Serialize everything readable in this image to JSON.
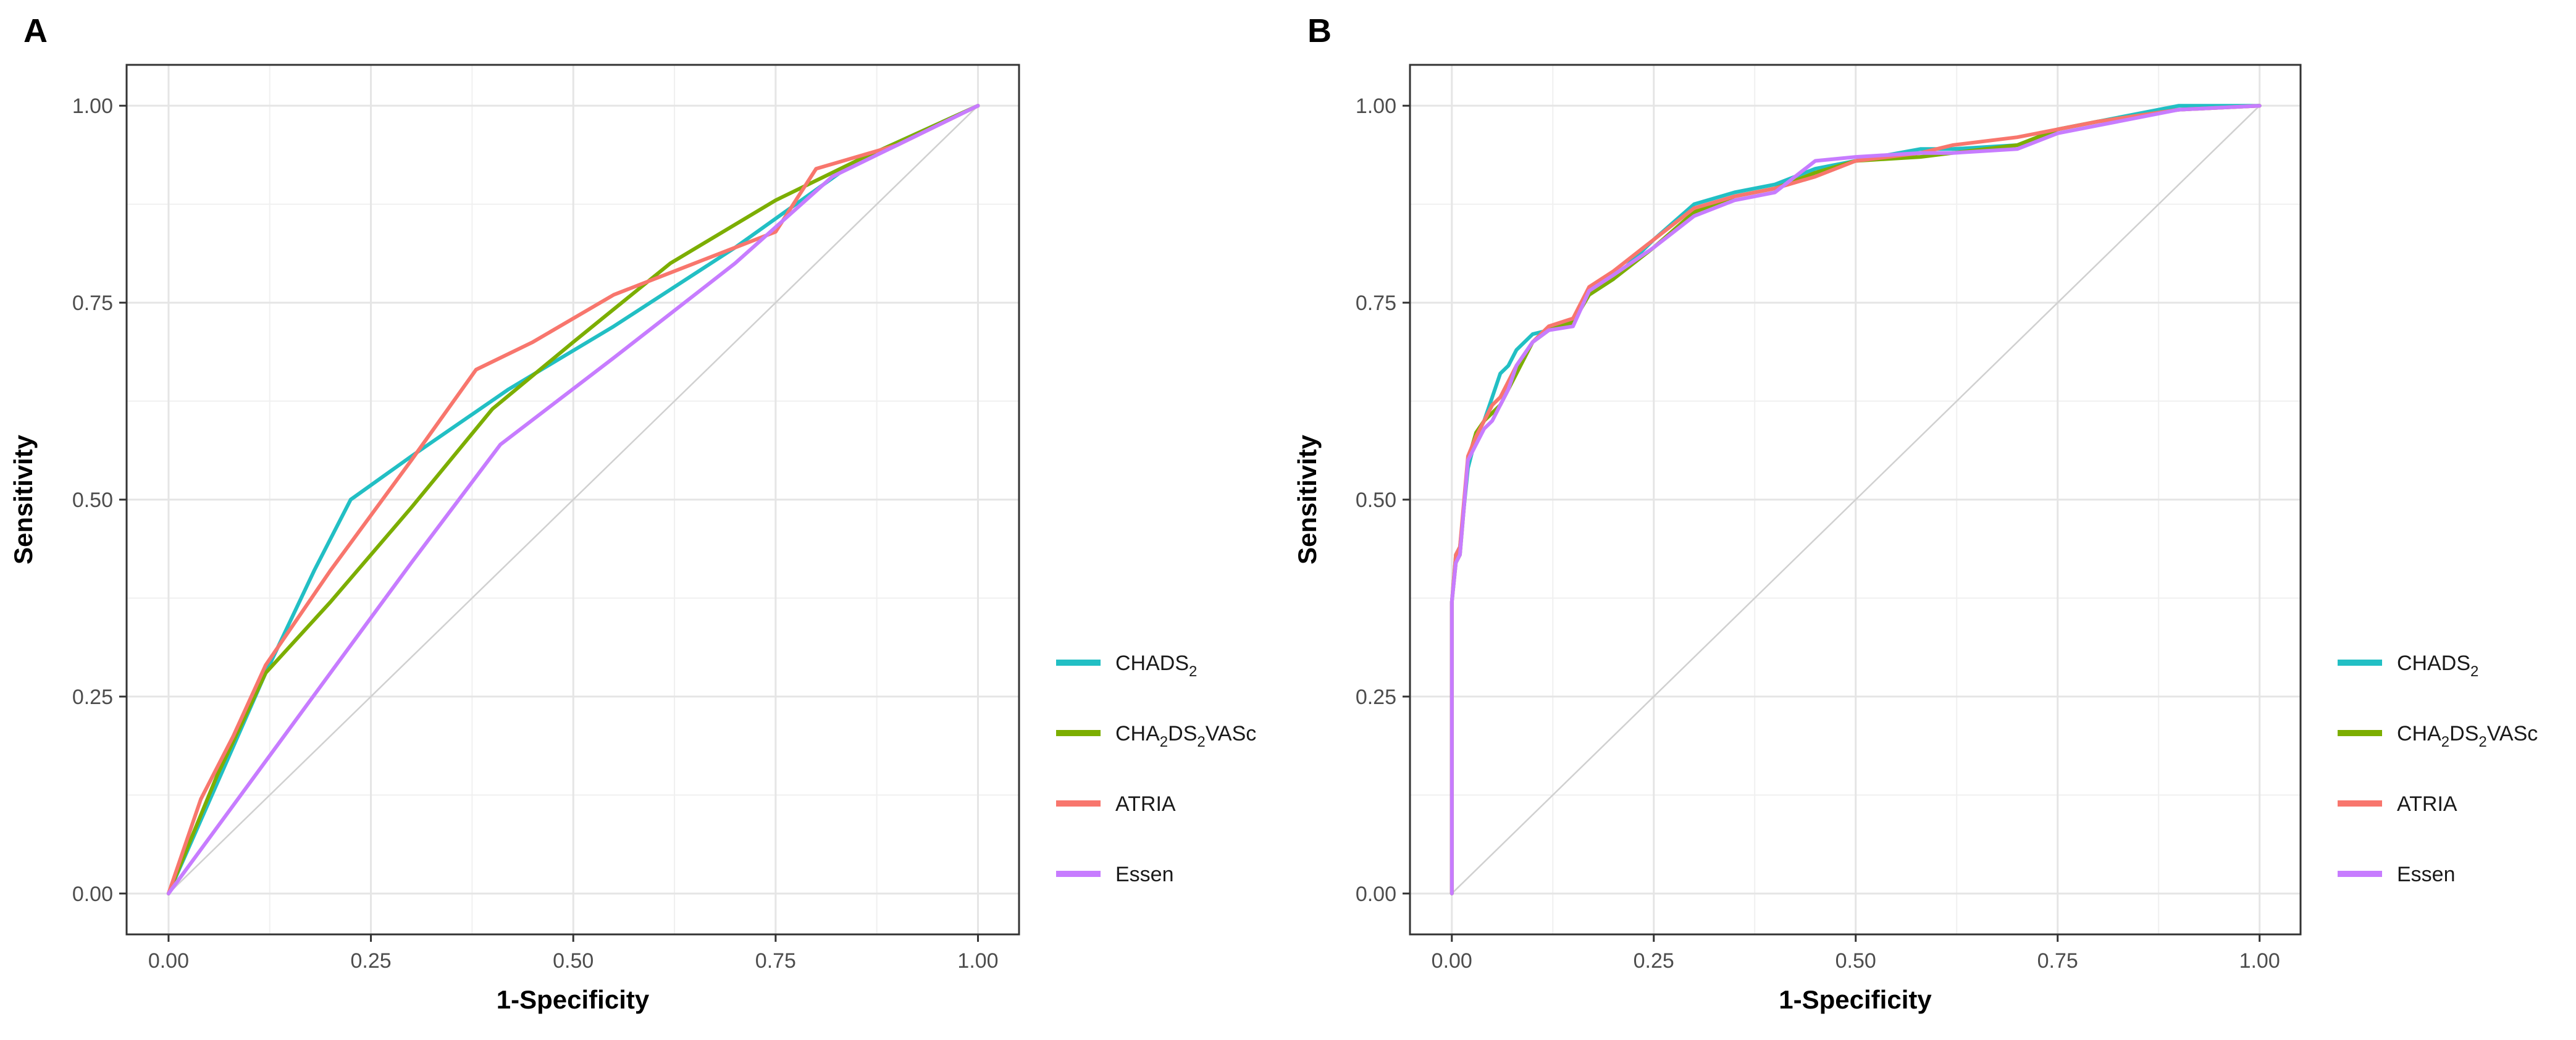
{
  "colors": {
    "CHADS2": "#22BFC4",
    "CHA2DS2VASc": "#7CAE00",
    "ATRIA": "#F8766D",
    "Essen": "#C77CFF",
    "reference": "#d0d0d0",
    "grid": "#e5e5e5",
    "frame": "#333333"
  },
  "legend": {
    "items": [
      {
        "key": "CHADS2",
        "label_parts": [
          {
            "t": "CHADS"
          },
          {
            "t": "2",
            "sub": true
          }
        ]
      },
      {
        "key": "CHA2DS2VASc",
        "label_parts": [
          {
            "t": "CHA"
          },
          {
            "t": "2",
            "sub": true
          },
          {
            "t": "DS"
          },
          {
            "t": "2",
            "sub": true
          },
          {
            "t": "VASc"
          }
        ]
      },
      {
        "key": "ATRIA",
        "label_parts": [
          {
            "t": "ATRIA"
          }
        ]
      },
      {
        "key": "Essen",
        "label_parts": [
          {
            "t": "Essen"
          }
        ]
      }
    ]
  },
  "chart_data": [
    {
      "type": "line",
      "panel": "A",
      "xlabel": "1-Specificity",
      "ylabel": "Sensitivity",
      "xlim": [
        0,
        1
      ],
      "ylim": [
        0,
        1
      ],
      "x_ticks": [
        "0.00",
        "0.25",
        "0.50",
        "0.75",
        "1.00"
      ],
      "y_ticks": [
        "0.00",
        "0.25",
        "0.50",
        "0.75",
        "1.00"
      ],
      "grid": true,
      "legend_position": "right",
      "reference_line": [
        [
          0,
          0
        ],
        [
          1,
          1
        ]
      ],
      "series": [
        {
          "key": "CHADS2",
          "name": "CHADS2",
          "x": [
            0,
            0.06,
            0.12,
            0.18,
            0.225,
            0.3,
            0.42,
            0.55,
            0.7,
            0.85,
            1.0
          ],
          "y": [
            0,
            0.14,
            0.28,
            0.41,
            0.5,
            0.555,
            0.64,
            0.72,
            0.82,
            0.93,
            1.0
          ]
        },
        {
          "key": "CHA2DS2VASc",
          "name": "CHA2DS2VASc",
          "x": [
            0,
            0.06,
            0.12,
            0.2,
            0.3,
            0.4,
            0.5,
            0.62,
            0.75,
            0.85,
            1.0
          ],
          "y": [
            0,
            0.15,
            0.28,
            0.37,
            0.49,
            0.615,
            0.7,
            0.8,
            0.88,
            0.93,
            1.0
          ]
        },
        {
          "key": "ATRIA",
          "name": "ATRIA",
          "x": [
            0,
            0.04,
            0.08,
            0.12,
            0.2,
            0.3,
            0.38,
            0.45,
            0.55,
            0.65,
            0.75,
            0.8,
            0.9,
            1.0
          ],
          "y": [
            0,
            0.12,
            0.2,
            0.29,
            0.41,
            0.55,
            0.665,
            0.7,
            0.76,
            0.8,
            0.84,
            0.92,
            0.95,
            1.0
          ]
        },
        {
          "key": "Essen",
          "name": "Essen",
          "x": [
            0,
            0.1,
            0.2,
            0.3,
            0.41,
            0.55,
            0.7,
            0.82,
            0.9,
            1.0
          ],
          "y": [
            0,
            0.14,
            0.28,
            0.42,
            0.57,
            0.68,
            0.8,
            0.91,
            0.95,
            1.0
          ]
        }
      ]
    },
    {
      "type": "line",
      "panel": "B",
      "xlabel": "1-Specificity",
      "ylabel": "Sensitivity",
      "xlim": [
        0,
        1
      ],
      "ylim": [
        0,
        1
      ],
      "x_ticks": [
        "0.00",
        "0.25",
        "0.50",
        "0.75",
        "1.00"
      ],
      "y_ticks": [
        "0.00",
        "0.25",
        "0.50",
        "0.75",
        "1.00"
      ],
      "grid": true,
      "legend_position": "right",
      "reference_line": [
        [
          0,
          0
        ],
        [
          1,
          1
        ]
      ],
      "series": [
        {
          "key": "CHADS2",
          "name": "CHADS2",
          "x": [
            0,
            0,
            0.005,
            0.01,
            0.02,
            0.03,
            0.04,
            0.05,
            0.06,
            0.07,
            0.08,
            0.1,
            0.12,
            0.15,
            0.17,
            0.2,
            0.25,
            0.3,
            0.35,
            0.4,
            0.45,
            0.5,
            0.58,
            0.62,
            0.7,
            0.75,
            0.8,
            0.9,
            1.0
          ],
          "y": [
            0,
            0.37,
            0.43,
            0.44,
            0.54,
            0.58,
            0.6,
            0.63,
            0.66,
            0.67,
            0.69,
            0.71,
            0.715,
            0.73,
            0.76,
            0.78,
            0.83,
            0.875,
            0.89,
            0.9,
            0.92,
            0.93,
            0.945,
            0.945,
            0.95,
            0.97,
            0.98,
            1.0,
            1.0
          ]
        },
        {
          "key": "CHA2DS2VASc",
          "name": "CHA2DS2VASc",
          "x": [
            0,
            0,
            0.005,
            0.01,
            0.02,
            0.03,
            0.04,
            0.05,
            0.06,
            0.07,
            0.08,
            0.1,
            0.12,
            0.15,
            0.17,
            0.2,
            0.25,
            0.3,
            0.35,
            0.4,
            0.45,
            0.5,
            0.58,
            0.62,
            0.7,
            0.75,
            0.8,
            0.9,
            1.0
          ],
          "y": [
            0,
            0.37,
            0.42,
            0.43,
            0.55,
            0.585,
            0.6,
            0.61,
            0.62,
            0.64,
            0.66,
            0.7,
            0.715,
            0.725,
            0.76,
            0.78,
            0.82,
            0.865,
            0.885,
            0.895,
            0.915,
            0.93,
            0.935,
            0.94,
            0.95,
            0.97,
            0.98,
            0.995,
            1.0
          ]
        },
        {
          "key": "ATRIA",
          "name": "ATRIA",
          "x": [
            0,
            0,
            0.005,
            0.01,
            0.02,
            0.03,
            0.04,
            0.05,
            0.06,
            0.07,
            0.08,
            0.1,
            0.12,
            0.15,
            0.17,
            0.2,
            0.25,
            0.3,
            0.35,
            0.4,
            0.45,
            0.5,
            0.58,
            0.62,
            0.7,
            0.75,
            0.8,
            0.9,
            1.0
          ],
          "y": [
            0,
            0.37,
            0.43,
            0.44,
            0.555,
            0.58,
            0.6,
            0.62,
            0.63,
            0.65,
            0.67,
            0.7,
            0.72,
            0.73,
            0.77,
            0.79,
            0.83,
            0.87,
            0.885,
            0.895,
            0.91,
            0.93,
            0.94,
            0.95,
            0.96,
            0.97,
            0.98,
            0.995,
            1.0
          ]
        },
        {
          "key": "Essen",
          "name": "Essen",
          "x": [
            0,
            0,
            0.005,
            0.01,
            0.02,
            0.03,
            0.04,
            0.05,
            0.06,
            0.07,
            0.08,
            0.1,
            0.12,
            0.15,
            0.17,
            0.2,
            0.25,
            0.3,
            0.35,
            0.4,
            0.45,
            0.5,
            0.58,
            0.62,
            0.7,
            0.75,
            0.8,
            0.9,
            1.0
          ],
          "y": [
            0,
            0.37,
            0.42,
            0.43,
            0.55,
            0.57,
            0.59,
            0.6,
            0.62,
            0.64,
            0.67,
            0.7,
            0.715,
            0.72,
            0.765,
            0.785,
            0.82,
            0.86,
            0.88,
            0.89,
            0.93,
            0.935,
            0.94,
            0.94,
            0.945,
            0.965,
            0.975,
            0.995,
            1.0
          ]
        }
      ]
    }
  ]
}
